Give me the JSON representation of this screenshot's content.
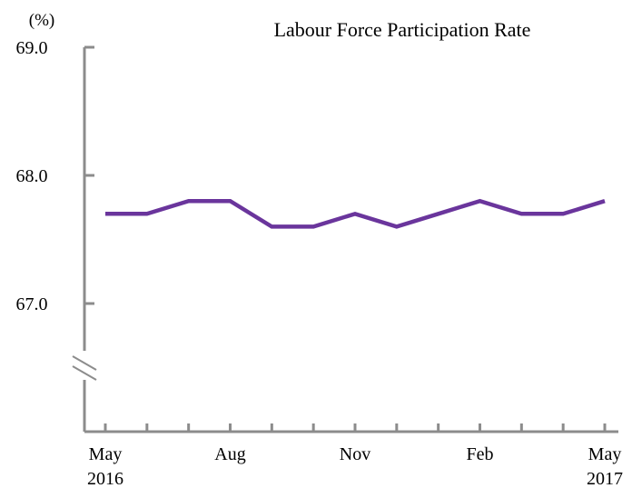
{
  "chart_data": {
    "type": "line",
    "title": "Labour Force Participation Rate",
    "unit_label": "(%)",
    "xlabel": "",
    "ylabel": "",
    "ylim": [
      66.0,
      69.0
    ],
    "y_ticks": [
      {
        "value": 69.0,
        "label": "69.0"
      },
      {
        "value": 68.0,
        "label": "68.0"
      },
      {
        "value": 67.0,
        "label": "67.0"
      }
    ],
    "axis_break": true,
    "grid": false,
    "legend": "none",
    "categories": [
      "May 2016",
      "Jun 2016",
      "Jul 2016",
      "Aug 2016",
      "Sep 2016",
      "Oct 2016",
      "Nov 2016",
      "Dec 2016",
      "Jan 2017",
      "Feb 2017",
      "Mar 2017",
      "Apr 2017",
      "May 2017"
    ],
    "x_tick_labels": [
      {
        "index": 0,
        "line1": "May",
        "line2": "2016"
      },
      {
        "index": 3,
        "line1": "Aug",
        "line2": ""
      },
      {
        "index": 6,
        "line1": "Nov",
        "line2": ""
      },
      {
        "index": 9,
        "line1": "Feb",
        "line2": ""
      },
      {
        "index": 12,
        "line1": "May",
        "line2": "2017"
      }
    ],
    "series": [
      {
        "values": [
          67.7,
          67.7,
          67.8,
          67.8,
          67.6,
          67.6,
          67.7,
          67.6,
          67.7,
          67.8,
          67.7,
          67.7,
          67.8
        ],
        "color": "#6a359c"
      }
    ],
    "axis_color": "#8c8c8c"
  }
}
